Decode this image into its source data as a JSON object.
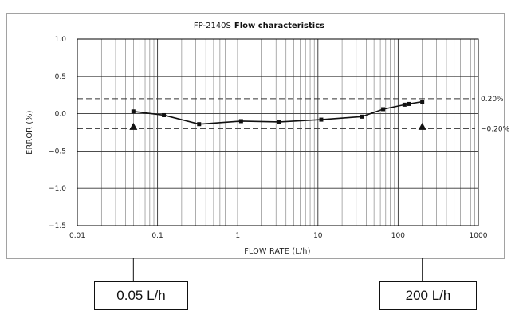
{
  "chart_data": {
    "type": "line",
    "title_model": "FP-2140S",
    "title_rest": "Flow characteristics",
    "xlabel": "FLOW RATE (L/h)",
    "ylabel": "ERROR (%)",
    "x_scale": "log",
    "xlim": [
      0.01,
      1000
    ],
    "ylim": [
      -1.5,
      1.0
    ],
    "x_ticks": [
      0.01,
      0.1,
      1,
      10,
      100,
      1000
    ],
    "x_tick_labels": [
      "0.01",
      "0.1",
      "1",
      "10",
      "100",
      "1000"
    ],
    "y_ticks": [
      1.0,
      0.5,
      0.0,
      -0.5,
      -1.0,
      -1.5
    ],
    "y_tick_labels": [
      "1.0",
      "0.5",
      "0.0",
      "−0.5",
      "−1.0",
      "−1.5"
    ],
    "grid": true,
    "series": [
      {
        "x": [
          0.05,
          0.12,
          0.33,
          1.1,
          3.3,
          11,
          35,
          65,
          120,
          135,
          200
        ],
        "y": [
          0.03,
          -0.02,
          -0.14,
          -0.1,
          -0.11,
          -0.08,
          -0.04,
          0.06,
          0.12,
          0.13,
          0.16
        ]
      }
    ],
    "reference_lines": [
      {
        "y": 0.2,
        "label": "0.20%"
      },
      {
        "y": -0.2,
        "label": "−0.20%"
      }
    ],
    "range_markers": [
      {
        "x": 0.05,
        "label": "0.05 L/h"
      },
      {
        "x": 200,
        "label": "200 L/h"
      }
    ]
  }
}
